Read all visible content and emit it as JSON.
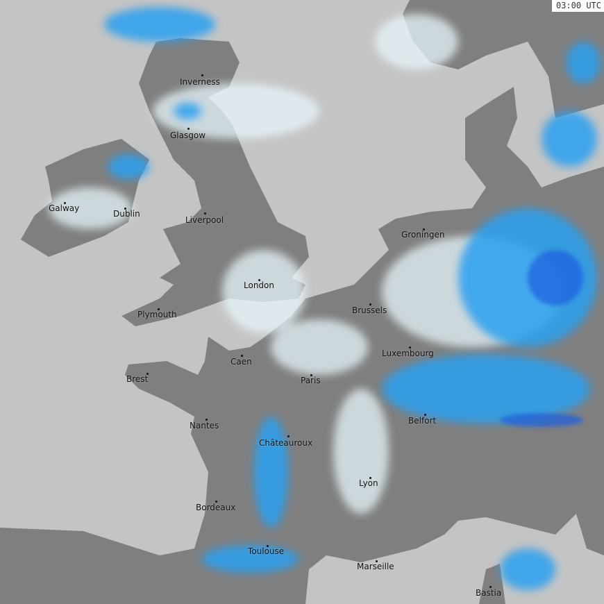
{
  "timestamp": "03:00 UTC",
  "colors": {
    "sea": "#c4c4c4",
    "land": "#7f7f7f",
    "rain_light": "#e8f6fb",
    "rain_moderate": "#2aa0f0",
    "rain_heavy": "#1a5fe0"
  },
  "cities": [
    {
      "name": "Inverness"
    },
    {
      "name": "Glasgow"
    },
    {
      "name": "Galway"
    },
    {
      "name": "Dublin"
    },
    {
      "name": "Liverpool"
    },
    {
      "name": "London"
    },
    {
      "name": "Plymouth"
    },
    {
      "name": "Brussels"
    },
    {
      "name": "Groningen"
    },
    {
      "name": "Luxembourg"
    },
    {
      "name": "Caen"
    },
    {
      "name": "Brest"
    },
    {
      "name": "Paris"
    },
    {
      "name": "Nantes"
    },
    {
      "name": "Châteauroux"
    },
    {
      "name": "Belfort"
    },
    {
      "name": "Lyon"
    },
    {
      "name": "Bordeaux"
    },
    {
      "name": "Toulouse"
    },
    {
      "name": "Marseille"
    },
    {
      "name": "Bastia"
    }
  ]
}
